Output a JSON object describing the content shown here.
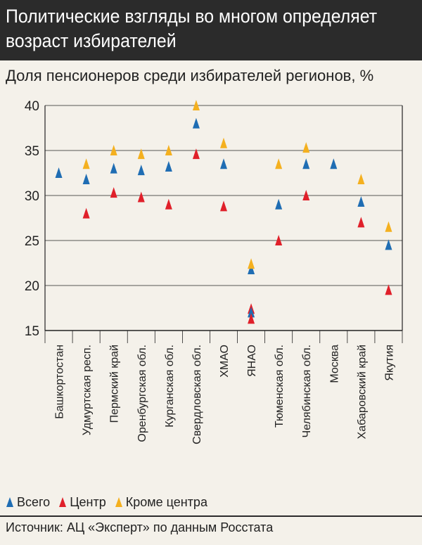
{
  "header": {
    "title": "Политические взгляды во многом определяет возраст избирателей"
  },
  "subtitle": "Доля пенсионеров среди избирателей регионов, %",
  "legend": [
    {
      "label": "Всего",
      "color": "#1f6db3"
    },
    {
      "label": "Центр",
      "color": "#e0202a"
    },
    {
      "label": "Кроме центра",
      "color": "#f4b01f"
    }
  ],
  "source": "Источник: АЦ «Эксперт» по данным Росстата",
  "chart_data": {
    "type": "scatter",
    "title": "Политические взгляды во многом определяет возраст избирателей",
    "ylabel": "Доля пенсионеров среди избирателей регионов, %",
    "ylim": [
      15,
      40
    ],
    "yticks": [
      15,
      20,
      25,
      30,
      35,
      40
    ],
    "categories": [
      "Башкортостан",
      "Удмуртская респ.",
      "Пермский край",
      "Оренбургская обл.",
      "Курганская обл.",
      "Свердловская обл.",
      "ХМАО",
      "ЯНАО",
      "Тюменская обл.",
      "Челябинская обл.",
      "Москва",
      "Хабаровский край",
      "Якутия"
    ],
    "series": [
      {
        "name": "Всего",
        "color": "#1f6db3",
        "values": [
          32.5,
          31.8,
          33.0,
          32.8,
          33.2,
          38.0,
          33.5,
          21.8,
          29.0,
          33.5,
          33.5,
          29.3,
          24.5
        ]
      },
      {
        "name": "Центр",
        "color": "#e0202a",
        "values": [
          null,
          28.0,
          30.3,
          29.8,
          29.0,
          34.6,
          28.8,
          17.4,
          25.0,
          30.0,
          null,
          27.0,
          19.5
        ]
      },
      {
        "name": "Кроме центра",
        "color": "#f4b01f",
        "values": [
          null,
          33.5,
          35.0,
          34.6,
          35.0,
          40.0,
          35.8,
          22.4,
          33.5,
          35.3,
          null,
          31.8,
          26.5
        ]
      }
    ],
    "extra_points": [
      {
        "series": "Всего",
        "category": "ЯНАО",
        "value": 17.0
      },
      {
        "series": "Центр",
        "category": "ЯНАО",
        "value": 16.3
      }
    ]
  }
}
